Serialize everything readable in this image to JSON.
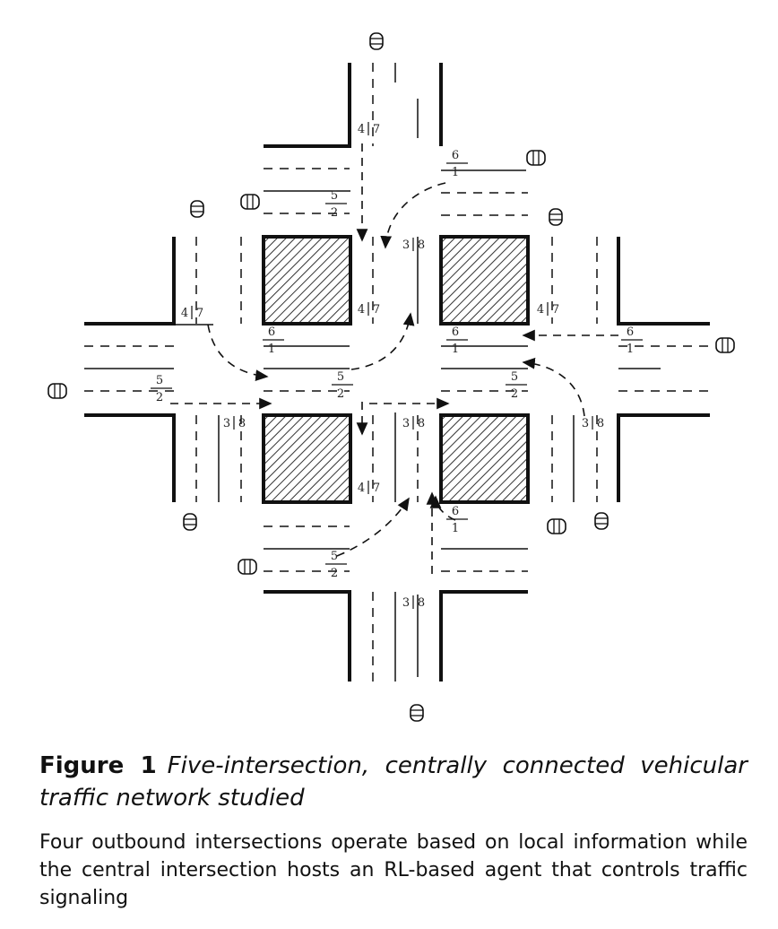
{
  "figure": {
    "number_label": "Figure 1",
    "title": "Five-intersection, centrally connected vehicular traffic network studied",
    "description": "Four outbound intersections operate based on local information while the central intersection hosts an RL-based agent that controls traffic signaling"
  },
  "lane_labels": [
    {
      "id": "n-47",
      "left": "4",
      "right": "7"
    },
    {
      "id": "n-61",
      "top": "6",
      "bottom": "1"
    },
    {
      "id": "n-52",
      "top": "5",
      "bottom": "2"
    },
    {
      "id": "w-47",
      "left": "4",
      "right": "7"
    },
    {
      "id": "c-38-top",
      "left": "3",
      "right": "8"
    },
    {
      "id": "c-47-top",
      "left": "4",
      "right": "7"
    },
    {
      "id": "e-47",
      "left": "4",
      "right": "7"
    },
    {
      "id": "c-61-left",
      "top": "6",
      "bottom": "1"
    },
    {
      "id": "c-61-right",
      "top": "6",
      "bottom": "1"
    },
    {
      "id": "e-61",
      "top": "6",
      "bottom": "1"
    },
    {
      "id": "w-52",
      "top": "5",
      "bottom": "2"
    },
    {
      "id": "c-52-left",
      "top": "5",
      "bottom": "2"
    },
    {
      "id": "c-52-right",
      "top": "5",
      "bottom": "2"
    },
    {
      "id": "w-38",
      "left": "3",
      "right": "8"
    },
    {
      "id": "c-38-bottom",
      "left": "3",
      "right": "8"
    },
    {
      "id": "e-38",
      "left": "3",
      "right": "8"
    },
    {
      "id": "c-47-bottom",
      "left": "4",
      "right": "7"
    },
    {
      "id": "s-61",
      "top": "6",
      "bottom": "1"
    },
    {
      "id": "s-52",
      "top": "5",
      "bottom": "2"
    },
    {
      "id": "s-38",
      "left": "3",
      "right": "8"
    }
  ],
  "colors": {
    "line": "#111111",
    "hatch": "#333333",
    "text": "#111111"
  }
}
